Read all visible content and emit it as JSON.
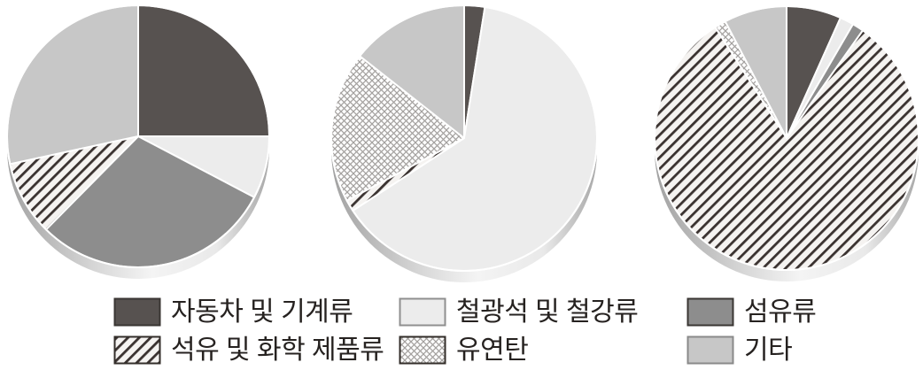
{
  "figure": {
    "description": "three 3d pie charts with shared legend",
    "background": "#ffffff"
  },
  "styles": {
    "dark": {
      "fill": "#575250",
      "border": "#3a3633"
    },
    "iron": {
      "fill": "#ececec",
      "border": "#8f8f8f"
    },
    "gray": {
      "fill": "#8d8d8d",
      "border": "#3a3633"
    },
    "hatch": {
      "bg": "#f5f3f1",
      "line": "#3a3230",
      "border": "#332e2a"
    },
    "cross": {
      "bg": "#fdfdfd",
      "line": "#a3a09e",
      "border": "#332e2a"
    },
    "other": {
      "fill": "#c7c7c7",
      "border": "#8a8a8a"
    },
    "slice_stroke": "#ffffff",
    "rim_stops": [
      "#a2a2a2",
      "#d9d9d9",
      "#f4f4f4",
      "#e9e9e9",
      "#a8a8a8"
    ],
    "text": "#262220"
  },
  "chart_data": [
    {
      "type": "pie",
      "title": "pie-1",
      "legend_position": "bottom",
      "slices": [
        {
          "label": "자동차 및 기계류",
          "style": "dark",
          "percent": 25.0
        },
        {
          "label": "철광석 및 철강류",
          "style": "iron",
          "percent": 7.7
        },
        {
          "label": "섬유류",
          "style": "gray",
          "percent": 29.7
        },
        {
          "label": "석유 및 화학 제품류",
          "style": "hatch",
          "percent": 9.2
        },
        {
          "label": "기타",
          "style": "other",
          "percent": 28.4
        }
      ]
    },
    {
      "type": "pie",
      "title": "pie-2",
      "legend_position": "bottom",
      "slices": [
        {
          "label": "자동차 및 기계류",
          "style": "dark",
          "percent": 2.5
        },
        {
          "label": "철광석 및 철강류",
          "style": "iron",
          "percent": 63.3
        },
        {
          "label": "석유 및 화학 제품류",
          "style": "hatch",
          "percent": 1.4
        },
        {
          "label": "유연탄",
          "style": "cross",
          "percent": 18.4
        },
        {
          "label": "기타",
          "style": "other",
          "percent": 14.4
        }
      ]
    },
    {
      "type": "pie",
      "title": "pie-3",
      "legend_position": "bottom",
      "slices": [
        {
          "label": "자동차 및 기계류",
          "style": "dark",
          "percent": 6.7
        },
        {
          "label": "철광석 및 철강류",
          "style": "iron",
          "percent": 1.7
        },
        {
          "label": "섬유류",
          "style": "gray",
          "percent": 1.4
        },
        {
          "label": "석유 및 화학 제품류",
          "style": "hatch",
          "percent": 81.1
        },
        {
          "label": "유연탄",
          "style": "cross",
          "percent": 1.4
        },
        {
          "label": "기타",
          "style": "other",
          "percent": 7.7
        }
      ]
    }
  ],
  "legend": {
    "items": [
      {
        "label": "자동차 및 기계류",
        "style": "dark"
      },
      {
        "label": "철광석 및 철강류",
        "style": "iron"
      },
      {
        "label": "섬유류",
        "style": "gray"
      },
      {
        "label": "석유 및 화학 제품류",
        "style": "hatch"
      },
      {
        "label": "유연탄",
        "style": "cross"
      },
      {
        "label": "기타",
        "style": "other"
      }
    ]
  }
}
